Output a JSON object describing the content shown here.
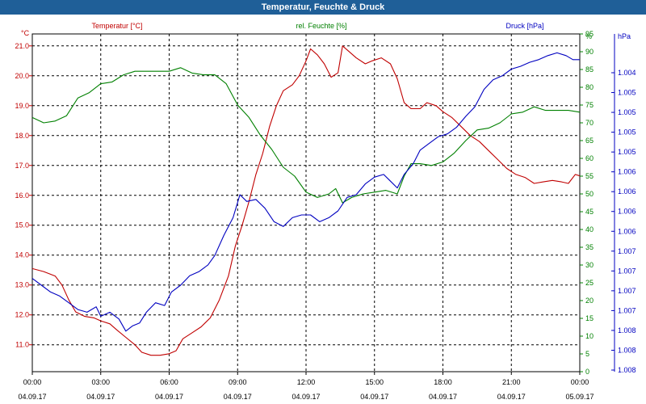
{
  "window": {
    "title": "Temperatur, Feuchte & Druck"
  },
  "chart_data": {
    "type": "line",
    "title": "Temperatur, Feuchte & Druck",
    "x_ticks": [
      {
        "time": "00:00",
        "date": "04.09.17",
        "h": 0
      },
      {
        "time": "03:00",
        "date": "04.09.17",
        "h": 3
      },
      {
        "time": "06:00",
        "date": "04.09.17",
        "h": 6
      },
      {
        "time": "09:00",
        "date": "04.09.17",
        "h": 9
      },
      {
        "time": "12:00",
        "date": "04.09.17",
        "h": 12
      },
      {
        "time": "15:00",
        "date": "04.09.17",
        "h": 15
      },
      {
        "time": "18:00",
        "date": "04.09.17",
        "h": 18
      },
      {
        "time": "21:00",
        "date": "04.09.17",
        "h": 21
      },
      {
        "time": "00:00",
        "date": "05.09.17",
        "h": 24
      }
    ],
    "xlim": [
      0,
      24
    ],
    "grid": true,
    "axes": {
      "temperature": {
        "unit": "°C",
        "label": "Temperatur [°C]",
        "color": "#c00000",
        "ylim": [
          10.1,
          21.4
        ],
        "ticks": [
          "11.0",
          "12.0",
          "13.0",
          "14.0",
          "15.0",
          "16.0",
          "17.0",
          "18.0",
          "19.0",
          "20.0",
          "21.0"
        ]
      },
      "humidity": {
        "unit": "%",
        "label": "rel. Feuchte [%]",
        "color": "#008000",
        "ylim": [
          0,
          95
        ],
        "ticks": [
          "0",
          "5",
          "10",
          "15",
          "20",
          "25",
          "30",
          "35",
          "40",
          "45",
          "50",
          "55",
          "60",
          "65",
          "70",
          "75",
          "80",
          "85",
          "90",
          "95"
        ]
      },
      "pressure": {
        "unit": "hPa",
        "label": "Druck [hPa]",
        "color": "#0000c0",
        "ylim": [
          1.0035,
          1.0085
        ],
        "ticks": [
          "1.004",
          "1.005",
          "1.005",
          "1.005",
          "1.005",
          "1.006",
          "1.006",
          "1.006",
          "1.006",
          "1.007",
          "1.007",
          "1.007",
          "1.007",
          "1.008",
          "1.008",
          "1.008"
        ]
      }
    },
    "series": [
      {
        "name": "Temperatur [°C]",
        "axis": "temperature",
        "color": "#c00000",
        "points": [
          [
            0,
            13.55
          ],
          [
            0.5,
            13.45
          ],
          [
            1,
            13.3
          ],
          [
            1.3,
            13.0
          ],
          [
            1.6,
            12.5
          ],
          [
            1.9,
            12.1
          ],
          [
            2.3,
            11.95
          ],
          [
            2.7,
            11.9
          ],
          [
            3,
            11.8
          ],
          [
            3.4,
            11.7
          ],
          [
            3.7,
            11.5
          ],
          [
            4.1,
            11.25
          ],
          [
            4.5,
            11.0
          ],
          [
            4.8,
            10.75
          ],
          [
            5.2,
            10.65
          ],
          [
            5.6,
            10.65
          ],
          [
            6,
            10.7
          ],
          [
            6.3,
            10.8
          ],
          [
            6.6,
            11.2
          ],
          [
            7,
            11.4
          ],
          [
            7.4,
            11.6
          ],
          [
            7.8,
            11.9
          ],
          [
            8.2,
            12.5
          ],
          [
            8.6,
            13.3
          ],
          [
            8.9,
            14.3
          ],
          [
            9.2,
            15.0
          ],
          [
            9.5,
            15.8
          ],
          [
            9.8,
            16.7
          ],
          [
            10.1,
            17.4
          ],
          [
            10.4,
            18.3
          ],
          [
            10.7,
            19.0
          ],
          [
            11,
            19.5
          ],
          [
            11.4,
            19.7
          ],
          [
            11.7,
            20.0
          ],
          [
            12,
            20.5
          ],
          [
            12.2,
            20.9
          ],
          [
            12.5,
            20.7
          ],
          [
            12.8,
            20.4
          ],
          [
            13.1,
            19.95
          ],
          [
            13.4,
            20.1
          ],
          [
            13.6,
            21.0
          ],
          [
            13.9,
            20.8
          ],
          [
            14.2,
            20.6
          ],
          [
            14.6,
            20.4
          ],
          [
            14.9,
            20.5
          ],
          [
            15.3,
            20.6
          ],
          [
            15.7,
            20.4
          ],
          [
            16,
            19.9
          ],
          [
            16.3,
            19.1
          ],
          [
            16.6,
            18.9
          ],
          [
            17,
            18.9
          ],
          [
            17.3,
            19.1
          ],
          [
            17.7,
            19.0
          ],
          [
            18,
            18.8
          ],
          [
            18.4,
            18.6
          ],
          [
            18.8,
            18.3
          ],
          [
            19.2,
            18.0
          ],
          [
            19.6,
            17.8
          ],
          [
            20,
            17.5
          ],
          [
            20.4,
            17.2
          ],
          [
            20.8,
            16.9
          ],
          [
            21.2,
            16.7
          ],
          [
            21.6,
            16.6
          ],
          [
            22,
            16.4
          ],
          [
            22.4,
            16.45
          ],
          [
            22.8,
            16.5
          ],
          [
            23.2,
            16.45
          ],
          [
            23.5,
            16.4
          ],
          [
            23.8,
            16.7
          ],
          [
            24,
            16.65
          ]
        ]
      },
      {
        "name": "rel. Feuchte [%]",
        "axis": "humidity",
        "color": "#008000",
        "points": [
          [
            0,
            71.5
          ],
          [
            0.5,
            70.0
          ],
          [
            1,
            70.5
          ],
          [
            1.5,
            72.0
          ],
          [
            2,
            77.0
          ],
          [
            2.5,
            78.5
          ],
          [
            3,
            81.0
          ],
          [
            3.5,
            81.5
          ],
          [
            4,
            83.5
          ],
          [
            4.5,
            84.5
          ],
          [
            5,
            84.5
          ],
          [
            5.5,
            84.5
          ],
          [
            6,
            84.5
          ],
          [
            6.5,
            85.5
          ],
          [
            7,
            84.0
          ],
          [
            7.5,
            83.5
          ],
          [
            8,
            83.5
          ],
          [
            8.5,
            81.0
          ],
          [
            9,
            75.0
          ],
          [
            9.5,
            71.5
          ],
          [
            10,
            66.5
          ],
          [
            10.5,
            62.5
          ],
          [
            11,
            57.5
          ],
          [
            11.5,
            55.0
          ],
          [
            12,
            50.5
          ],
          [
            12.5,
            49.0
          ],
          [
            13,
            50.0
          ],
          [
            13.3,
            51.5
          ],
          [
            13.6,
            47.5
          ],
          [
            14,
            49.0
          ],
          [
            14.5,
            50.0
          ],
          [
            15,
            50.5
          ],
          [
            15.5,
            51.0
          ],
          [
            16,
            50.0
          ],
          [
            16.3,
            55.0
          ],
          [
            16.6,
            58.5
          ],
          [
            17,
            58.5
          ],
          [
            17.5,
            58.0
          ],
          [
            18,
            59.0
          ],
          [
            18.5,
            61.5
          ],
          [
            19,
            65.0
          ],
          [
            19.5,
            68.0
          ],
          [
            20,
            68.5
          ],
          [
            20.5,
            70.0
          ],
          [
            21,
            72.5
          ],
          [
            21.5,
            73.0
          ],
          [
            22,
            74.5
          ],
          [
            22.5,
            73.5
          ],
          [
            23,
            73.5
          ],
          [
            23.5,
            73.5
          ],
          [
            24,
            73.0
          ]
        ]
      },
      {
        "name": "Druck [hPa]",
        "axis": "pressure",
        "color": "#0000c0",
        "points": [
          [
            0,
            1.00488
          ],
          [
            0.4,
            1.00478
          ],
          [
            0.8,
            1.00468
          ],
          [
            1.2,
            1.00462
          ],
          [
            1.6,
            1.00452
          ],
          [
            2,
            1.00442
          ],
          [
            2.4,
            1.00438
          ],
          [
            2.8,
            1.00446
          ],
          [
            3,
            1.00432
          ],
          [
            3.4,
            1.00438
          ],
          [
            3.8,
            1.00428
          ],
          [
            4.1,
            1.0041
          ],
          [
            4.4,
            1.00418
          ],
          [
            4.7,
            1.00422
          ],
          [
            5,
            1.00438
          ],
          [
            5.4,
            1.00452
          ],
          [
            5.8,
            1.00448
          ],
          [
            6.1,
            1.00468
          ],
          [
            6.5,
            1.00478
          ],
          [
            6.9,
            1.00492
          ],
          [
            7.3,
            1.00498
          ],
          [
            7.7,
            1.00508
          ],
          [
            8,
            1.00522
          ],
          [
            8.4,
            1.00552
          ],
          [
            8.8,
            1.00578
          ],
          [
            9.1,
            1.00612
          ],
          [
            9.4,
            1.00602
          ],
          [
            9.8,
            1.00605
          ],
          [
            10.2,
            1.00592
          ],
          [
            10.6,
            1.00572
          ],
          [
            11,
            1.00565
          ],
          [
            11.4,
            1.00578
          ],
          [
            11.8,
            1.00582
          ],
          [
            12.2,
            1.00582
          ],
          [
            12.6,
            1.00572
          ],
          [
            13,
            1.00578
          ],
          [
            13.4,
            1.00588
          ],
          [
            13.8,
            1.00608
          ],
          [
            14.2,
            1.00612
          ],
          [
            14.6,
            1.00628
          ],
          [
            15,
            1.00638
          ],
          [
            15.4,
            1.00642
          ],
          [
            15.7,
            1.00632
          ],
          [
            16,
            1.00622
          ],
          [
            16.3,
            1.00642
          ],
          [
            16.7,
            1.00658
          ],
          [
            17,
            1.00678
          ],
          [
            17.4,
            1.00688
          ],
          [
            17.8,
            1.00698
          ],
          [
            18.2,
            1.00702
          ],
          [
            18.6,
            1.00712
          ],
          [
            19,
            1.00728
          ],
          [
            19.4,
            1.00742
          ],
          [
            19.8,
            1.00768
          ],
          [
            20.2,
            1.00782
          ],
          [
            20.6,
            1.00788
          ],
          [
            21,
            1.00798
          ],
          [
            21.4,
            1.00802
          ],
          [
            21.8,
            1.00808
          ],
          [
            22.2,
            1.00812
          ],
          [
            22.6,
            1.00818
          ],
          [
            23,
            1.00822
          ],
          [
            23.4,
            1.00818
          ],
          [
            23.7,
            1.00812
          ],
          [
            24,
            1.00812
          ]
        ]
      }
    ]
  }
}
